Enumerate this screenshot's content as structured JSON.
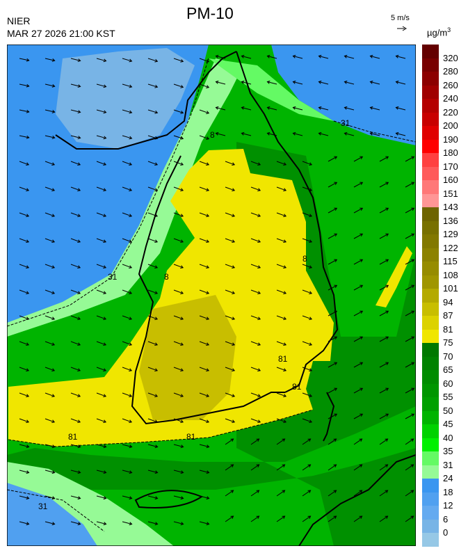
{
  "header": {
    "title": "PM-10",
    "organization": "NIER",
    "datetime": "MAR 27 2026 21:00 KST",
    "wind_reference": "5 m/s",
    "unit": "µg/m",
    "unit_superscript": "3"
  },
  "map": {
    "variable": "PM-10 concentration with wind vectors",
    "contour_labels": [
      "31",
      "31",
      "31",
      "81",
      "81",
      "81",
      "81",
      "8",
      "8",
      "8"
    ],
    "colors": {
      "sea_low": "#3a96f0",
      "light_green": "#96fa96",
      "green": "#00c800",
      "dark_green": "#009000",
      "yellow": "#f0e600",
      "olive": "#c8be00"
    }
  },
  "legend": {
    "labels": [
      "320",
      "280",
      "260",
      "240",
      "220",
      "200",
      "190",
      "180",
      "170",
      "160",
      "151",
      "143",
      "136",
      "129",
      "122",
      "115",
      "108",
      "101",
      "94",
      "87",
      "81",
      "75",
      "70",
      "65",
      "60",
      "55",
      "50",
      "45",
      "40",
      "35",
      "31",
      "24",
      "18",
      "12",
      "6",
      "0"
    ],
    "colors": [
      "#640000",
      "#780000",
      "#8c0000",
      "#a00000",
      "#b40000",
      "#c80000",
      "#e00000",
      "#ff0000",
      "#ff4040",
      "#ff5a5a",
      "#ff7878",
      "#ff9696",
      "#6e6400",
      "#787000",
      "#827800",
      "#8c8200",
      "#968c00",
      "#a09600",
      "#b4aa00",
      "#c8be00",
      "#dcd200",
      "#f0e600",
      "#007800",
      "#008200",
      "#008c00",
      "#009600",
      "#00a000",
      "#00b400",
      "#00d200",
      "#00f000",
      "#64fa64",
      "#96fa96",
      "#3a96f0",
      "#50a0f0",
      "#64aaf0",
      "#78b4e6",
      "#96c8e6"
    ]
  }
}
